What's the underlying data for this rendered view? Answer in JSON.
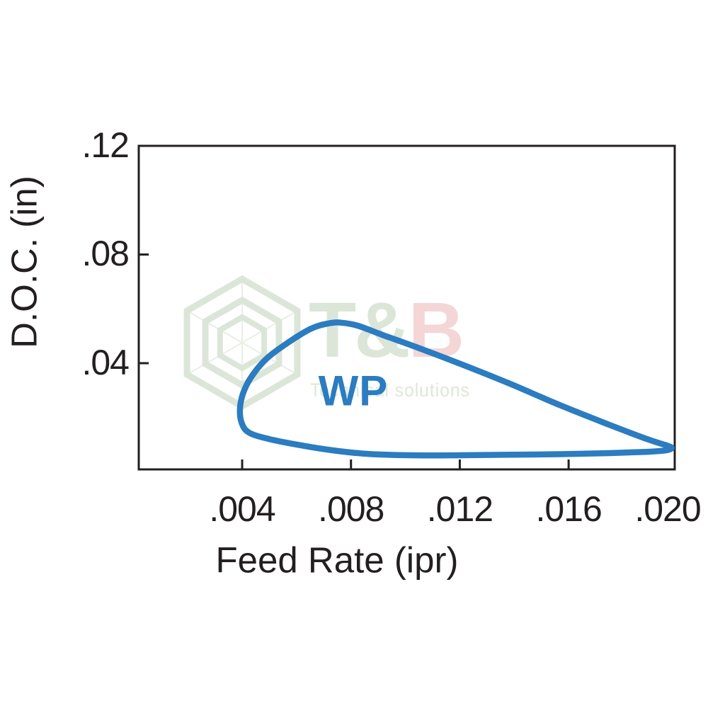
{
  "page": {
    "background": "#ffffff"
  },
  "watermark": {
    "brand_part1": "T&",
    "brand_part2": "B",
    "tagline": "Technical solutions",
    "colors": {
      "sage": "#dce6d8",
      "pink": "#f4d6d7",
      "web_line": "#e9efe5"
    }
  },
  "colors": {
    "axis": "#231f20",
    "text": "#231f20",
    "region_stroke": "#2b7cc0",
    "wp_label": "#2b7cc0"
  },
  "chart_data": {
    "type": "area",
    "subtype": "closed-region-contour",
    "title": "",
    "xlabel": "Feed Rate (ipr)",
    "ylabel": "D.O.C. (in)",
    "xlim": [
      0.0002,
      0.0199
    ],
    "ylim": [
      0.0009,
      0.12
    ],
    "grid": false,
    "legend": "none",
    "x_ticks": {
      "labels": [
        ".004",
        ".008",
        ".012",
        ".016",
        ".020"
      ],
      "values": [
        0.004,
        0.008,
        0.012,
        0.016,
        0.02
      ]
    },
    "y_ticks": {
      "labels": [
        ".04",
        ".08",
        ".12"
      ],
      "values": [
        0.04,
        0.08,
        0.12
      ]
    },
    "series": [
      {
        "name": "WP",
        "style": "closed outline, no fill",
        "color": "#2b7cc0",
        "label_position": {
          "x": 0.00807,
          "y": 0.0298
        },
        "points": [
          [
            0.00392,
            0.0231
          ],
          [
            0.00403,
            0.0288
          ],
          [
            0.00434,
            0.035
          ],
          [
            0.00491,
            0.0418
          ],
          [
            0.00572,
            0.0478
          ],
          [
            0.00655,
            0.0528
          ],
          [
            0.0072,
            0.0547
          ],
          [
            0.00765,
            0.0549
          ],
          [
            0.00825,
            0.0538
          ],
          [
            0.00916,
            0.0504
          ],
          [
            0.01046,
            0.0457
          ],
          [
            0.01203,
            0.0397
          ],
          [
            0.01385,
            0.0324
          ],
          [
            0.01567,
            0.0246
          ],
          [
            0.0175,
            0.0173
          ],
          [
            0.01893,
            0.0119
          ],
          [
            0.01958,
            0.0098
          ],
          [
            0.01979,
            0.0088
          ],
          [
            0.01958,
            0.0079
          ],
          [
            0.01893,
            0.0074
          ],
          [
            0.0175,
            0.0069
          ],
          [
            0.01567,
            0.0065
          ],
          [
            0.01385,
            0.0063
          ],
          [
            0.01203,
            0.0061
          ],
          [
            0.0102,
            0.0061
          ],
          [
            0.00864,
            0.0066
          ],
          [
            0.00734,
            0.0079
          ],
          [
            0.00603,
            0.01
          ],
          [
            0.00486,
            0.0124
          ],
          [
            0.00421,
            0.0147
          ],
          [
            0.00397,
            0.0184
          ]
        ]
      }
    ]
  }
}
